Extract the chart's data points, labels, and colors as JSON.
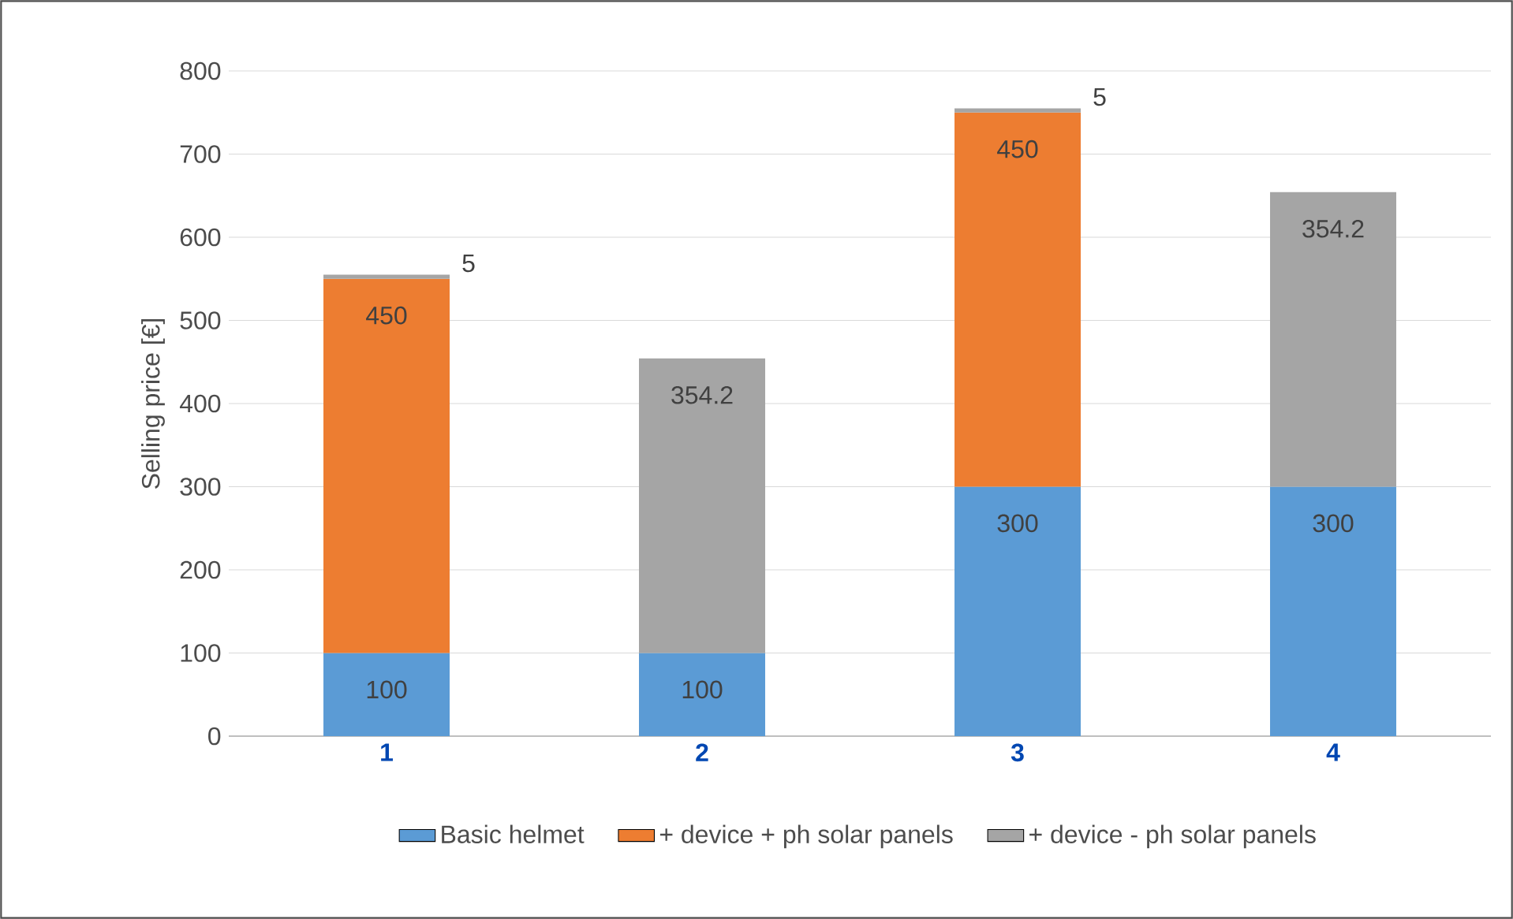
{
  "chart_data": {
    "type": "bar",
    "stacked": true,
    "ylabel": "Selling price [€]",
    "categories": [
      "1",
      "2",
      "3",
      "4"
    ],
    "series": [
      {
        "name": "Basic helmet",
        "color": "#5b9bd5",
        "values": [
          100,
          100,
          300,
          300
        ],
        "value_labels": [
          "100",
          "100",
          "300",
          "300"
        ]
      },
      {
        "name": "+ device + ph solar panels",
        "color": "#ed7d31",
        "values": [
          450,
          null,
          450,
          null
        ],
        "value_labels": [
          "450",
          null,
          "450",
          null
        ]
      },
      {
        "name": "+ device - ph solar panels",
        "color": "#a5a5a5",
        "values": [
          5,
          354.2,
          5,
          354.2
        ],
        "value_labels": [
          "5",
          "354.2",
          "5",
          "354.2"
        ]
      }
    ],
    "ylim": [
      0,
      800
    ],
    "yticks": [
      0,
      100,
      200,
      300,
      400,
      500,
      600,
      700,
      800
    ],
    "grid": "y",
    "legend": "bottom"
  }
}
